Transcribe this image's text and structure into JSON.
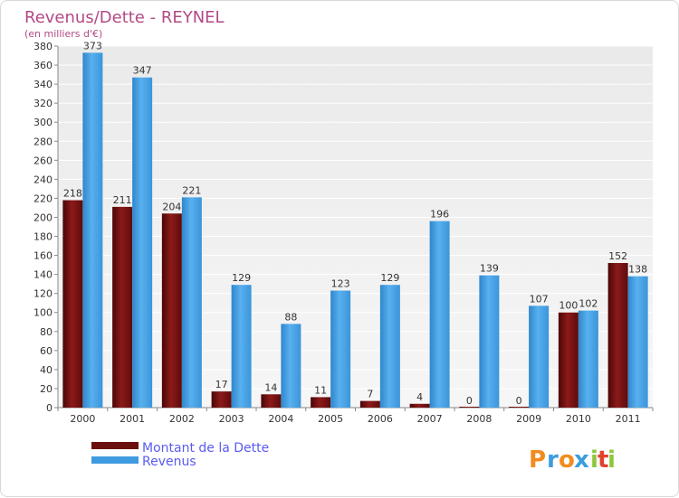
{
  "chart_data": {
    "type": "bar",
    "title": "Revenus/Dette - REYNEL",
    "subtitle": "(en milliers d'€)",
    "categories": [
      "2000",
      "2001",
      "2002",
      "2003",
      "2004",
      "2005",
      "2006",
      "2007",
      "2008",
      "2009",
      "2010",
      "2011"
    ],
    "series": [
      {
        "name": "Montant de la Dette",
        "color": "#7a1010",
        "values": [
          218,
          211,
          204,
          17,
          14,
          11,
          7,
          4,
          0,
          0,
          100,
          152
        ]
      },
      {
        "name": "Revenus",
        "color": "#3f9be0",
        "values": [
          373,
          347,
          221,
          129,
          88,
          123,
          129,
          196,
          139,
          107,
          102,
          138
        ]
      }
    ],
    "ylim": [
      0,
      380
    ],
    "ytick_step": 20,
    "grid": true
  },
  "brand": {
    "letters": [
      "P",
      "r",
      "o",
      "x",
      "i",
      "t",
      "i"
    ],
    "letter_colors": [
      "#f28c1e",
      "#3b9de0",
      "#f28c1e",
      "#3b9de0",
      "#8ec63f",
      "#e2412f",
      "#8ec63f"
    ]
  }
}
